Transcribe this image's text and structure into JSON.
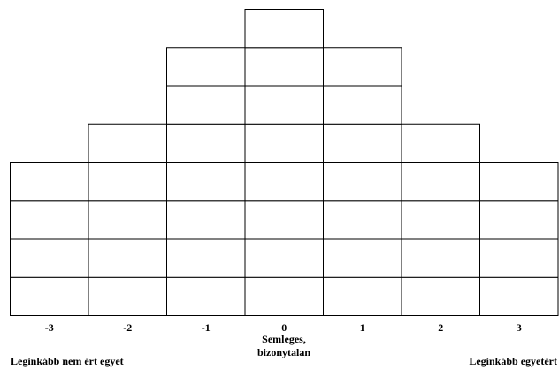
{
  "grid": {
    "columns": [
      {
        "score": "-3",
        "cells": 4
      },
      {
        "score": "-2",
        "cells": 5
      },
      {
        "score": "-1",
        "cells": 7
      },
      {
        "score": "0",
        "cells": 8
      },
      {
        "score": "1",
        "cells": 7
      },
      {
        "score": "2",
        "cells": 5
      },
      {
        "score": "3",
        "cells": 4
      }
    ],
    "line_color": "#000000"
  },
  "labels": {
    "center_line1": "Semleges,",
    "center_line2": "bizonytalan",
    "left": "Leginkább nem ért egyet",
    "right": "Leginkább egyetért"
  }
}
